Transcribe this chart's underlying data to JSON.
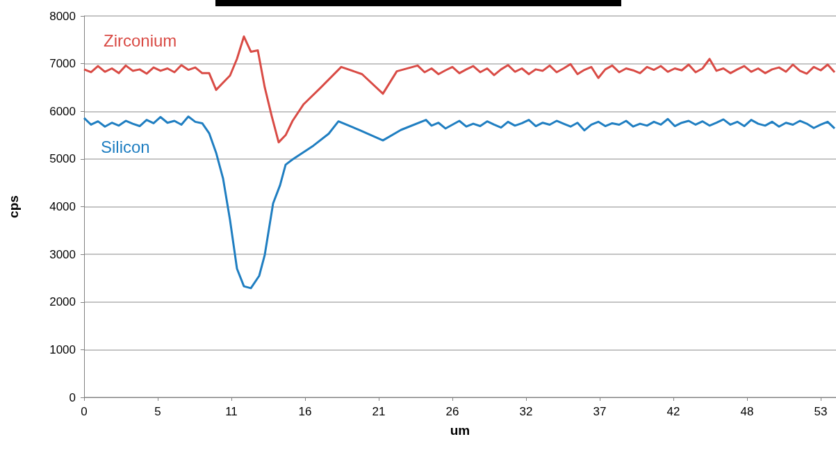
{
  "chart_data": {
    "type": "line",
    "xlabel": "um",
    "ylabel": "cps",
    "xlim": [
      0,
      54.1
    ],
    "ylim": [
      0,
      8000
    ],
    "xticks": [
      0,
      {
        "value": 5.3,
        "label": "5"
      },
      {
        "value": 10.6,
        "label": "11"
      },
      {
        "value": 15.9,
        "label": "16"
      },
      {
        "value": 21.2,
        "label": "21"
      },
      {
        "value": 26.5,
        "label": "26"
      },
      {
        "value": 31.8,
        "label": "32"
      },
      {
        "value": 37.1,
        "label": "37"
      },
      {
        "value": 42.4,
        "label": "42"
      },
      {
        "value": 47.7,
        "label": "48"
      },
      {
        "value": 53,
        "label": "53"
      }
    ],
    "yticks": [
      0,
      1000,
      2000,
      3000,
      4000,
      5000,
      6000,
      7000,
      8000
    ],
    "grid": "y",
    "legend": false,
    "marker": "none",
    "line_style": "solid",
    "series": [
      {
        "name": "Zirconium",
        "color": "#d94b45",
        "x": [
          0,
          0.5,
          1,
          1.5,
          2,
          2.5,
          3,
          3.5,
          4,
          4.5,
          5,
          5.5,
          6,
          6.5,
          7,
          7.5,
          8,
          8.5,
          9,
          9.5,
          10,
          10.5,
          11,
          11.5,
          12,
          12.5,
          13,
          13.5,
          14,
          14.5,
          15,
          15.8,
          17,
          18.5,
          20,
          21.5,
          22.5,
          24,
          24.5,
          25,
          25.5,
          26,
          26.5,
          27,
          27.5,
          28,
          28.5,
          29,
          29.5,
          30,
          30.5,
          31,
          31.5,
          32,
          32.5,
          33,
          33.5,
          34,
          34.5,
          35,
          35.5,
          36,
          36.5,
          37,
          37.5,
          38,
          38.5,
          39,
          39.5,
          40,
          40.5,
          41,
          41.5,
          42,
          42.5,
          43,
          43.5,
          44,
          44.5,
          45,
          45.5,
          46,
          46.5,
          47,
          47.5,
          48,
          48.5,
          49,
          49.5,
          50,
          50.5,
          51,
          51.5,
          52,
          52.5,
          53,
          53.5,
          54
        ],
        "values": [
          6880,
          6820,
          6950,
          6830,
          6900,
          6800,
          6960,
          6850,
          6880,
          6790,
          6920,
          6850,
          6900,
          6820,
          6970,
          6870,
          6920,
          6800,
          6800,
          6450,
          6600,
          6750,
          7100,
          7570,
          7250,
          7280,
          6500,
          5900,
          5350,
          5500,
          5800,
          6150,
          6490,
          6930,
          6780,
          6370,
          6840,
          6960,
          6820,
          6900,
          6780,
          6860,
          6930,
          6800,
          6880,
          6950,
          6820,
          6900,
          6760,
          6880,
          6970,
          6830,
          6900,
          6780,
          6880,
          6850,
          6960,
          6820,
          6900,
          6990,
          6780,
          6870,
          6930,
          6700,
          6880,
          6960,
          6820,
          6900,
          6860,
          6800,
          6930,
          6870,
          6950,
          6830,
          6900,
          6860,
          6980,
          6820,
          6900,
          7100,
          6850,
          6900,
          6800,
          6880,
          6950,
          6830,
          6900,
          6800,
          6880,
          6920,
          6830,
          6980,
          6850,
          6790,
          6930,
          6860,
          6980,
          6820
        ]
      },
      {
        "name": "Silicon",
        "color": "#1f7ec1",
        "x": [
          0,
          0.5,
          1,
          1.5,
          2,
          2.5,
          3,
          3.5,
          4,
          4.5,
          5,
          5.5,
          6,
          6.5,
          7,
          7.5,
          8,
          8.5,
          9,
          9.5,
          10,
          10.5,
          11,
          11.5,
          12,
          12.6,
          13,
          13.6,
          14.1,
          14.5,
          15,
          16.5,
          17.6,
          18.3,
          19.8,
          21.5,
          22.8,
          24.6,
          25,
          25.5,
          26,
          26.5,
          27,
          27.5,
          28,
          28.5,
          29,
          29.5,
          30,
          30.5,
          31,
          31.5,
          32,
          32.5,
          33,
          33.5,
          34,
          34.5,
          35,
          35.5,
          36,
          36.5,
          37,
          37.5,
          38,
          38.5,
          39,
          39.5,
          40,
          40.5,
          41,
          41.5,
          42,
          42.5,
          43,
          43.5,
          44,
          44.5,
          45,
          45.5,
          46,
          46.5,
          47,
          47.5,
          48,
          48.5,
          49,
          49.5,
          50,
          50.5,
          51,
          51.5,
          52,
          52.5,
          53,
          53.5,
          54
        ],
        "values": [
          5860,
          5720,
          5790,
          5680,
          5760,
          5700,
          5800,
          5740,
          5690,
          5820,
          5750,
          5880,
          5760,
          5800,
          5720,
          5890,
          5780,
          5750,
          5540,
          5130,
          4590,
          3720,
          2700,
          2330,
          2290,
          2550,
          2990,
          4070,
          4450,
          4880,
          4990,
          5280,
          5530,
          5790,
          5610,
          5390,
          5610,
          5820,
          5700,
          5760,
          5640,
          5720,
          5800,
          5680,
          5740,
          5690,
          5790,
          5720,
          5660,
          5780,
          5700,
          5750,
          5820,
          5690,
          5760,
          5720,
          5800,
          5740,
          5680,
          5760,
          5600,
          5720,
          5780,
          5690,
          5750,
          5720,
          5800,
          5680,
          5740,
          5700,
          5780,
          5720,
          5840,
          5690,
          5760,
          5800,
          5720,
          5790,
          5700,
          5760,
          5830,
          5720,
          5780,
          5690,
          5820,
          5740,
          5700,
          5780,
          5680,
          5760,
          5720,
          5800,
          5740,
          5650,
          5720,
          5780,
          5640
        ]
      }
    ]
  }
}
